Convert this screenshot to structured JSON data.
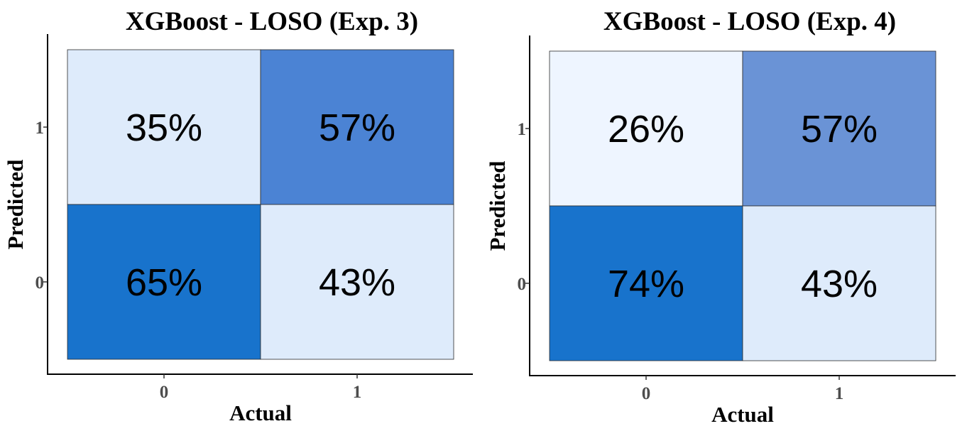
{
  "chart_data": [
    {
      "type": "heatmap",
      "title": "XGBoost - LOSO (Exp. 3)",
      "xlabel": "Actual",
      "ylabel": "Predicted",
      "x_categories": [
        "0",
        "1"
      ],
      "y_categories": [
        "0",
        "1"
      ],
      "cells": [
        {
          "actual": "0",
          "predicted": "1",
          "value": 35,
          "label": "35%",
          "color": "#deebfb"
        },
        {
          "actual": "1",
          "predicted": "1",
          "value": 57,
          "label": "57%",
          "color": "#4b83d4"
        },
        {
          "actual": "0",
          "predicted": "0",
          "value": 65,
          "label": "65%",
          "color": "#1873cc"
        },
        {
          "actual": "1",
          "predicted": "0",
          "value": 43,
          "label": "43%",
          "color": "#deebfb"
        }
      ],
      "grid": false
    },
    {
      "type": "heatmap",
      "title": "XGBoost - LOSO (Exp. 4)",
      "xlabel": "Actual",
      "ylabel": "Predicted",
      "x_categories": [
        "0",
        "1"
      ],
      "y_categories": [
        "0",
        "1"
      ],
      "cells": [
        {
          "actual": "0",
          "predicted": "1",
          "value": 26,
          "label": "26%",
          "color": "#eef5ff"
        },
        {
          "actual": "1",
          "predicted": "1",
          "value": 57,
          "label": "57%",
          "color": "#6a93d6"
        },
        {
          "actual": "0",
          "predicted": "0",
          "value": 74,
          "label": "74%",
          "color": "#1873cc"
        },
        {
          "actual": "1",
          "predicted": "0",
          "value": 43,
          "label": "43%",
          "color": "#deebfb"
        }
      ],
      "grid": false
    }
  ]
}
